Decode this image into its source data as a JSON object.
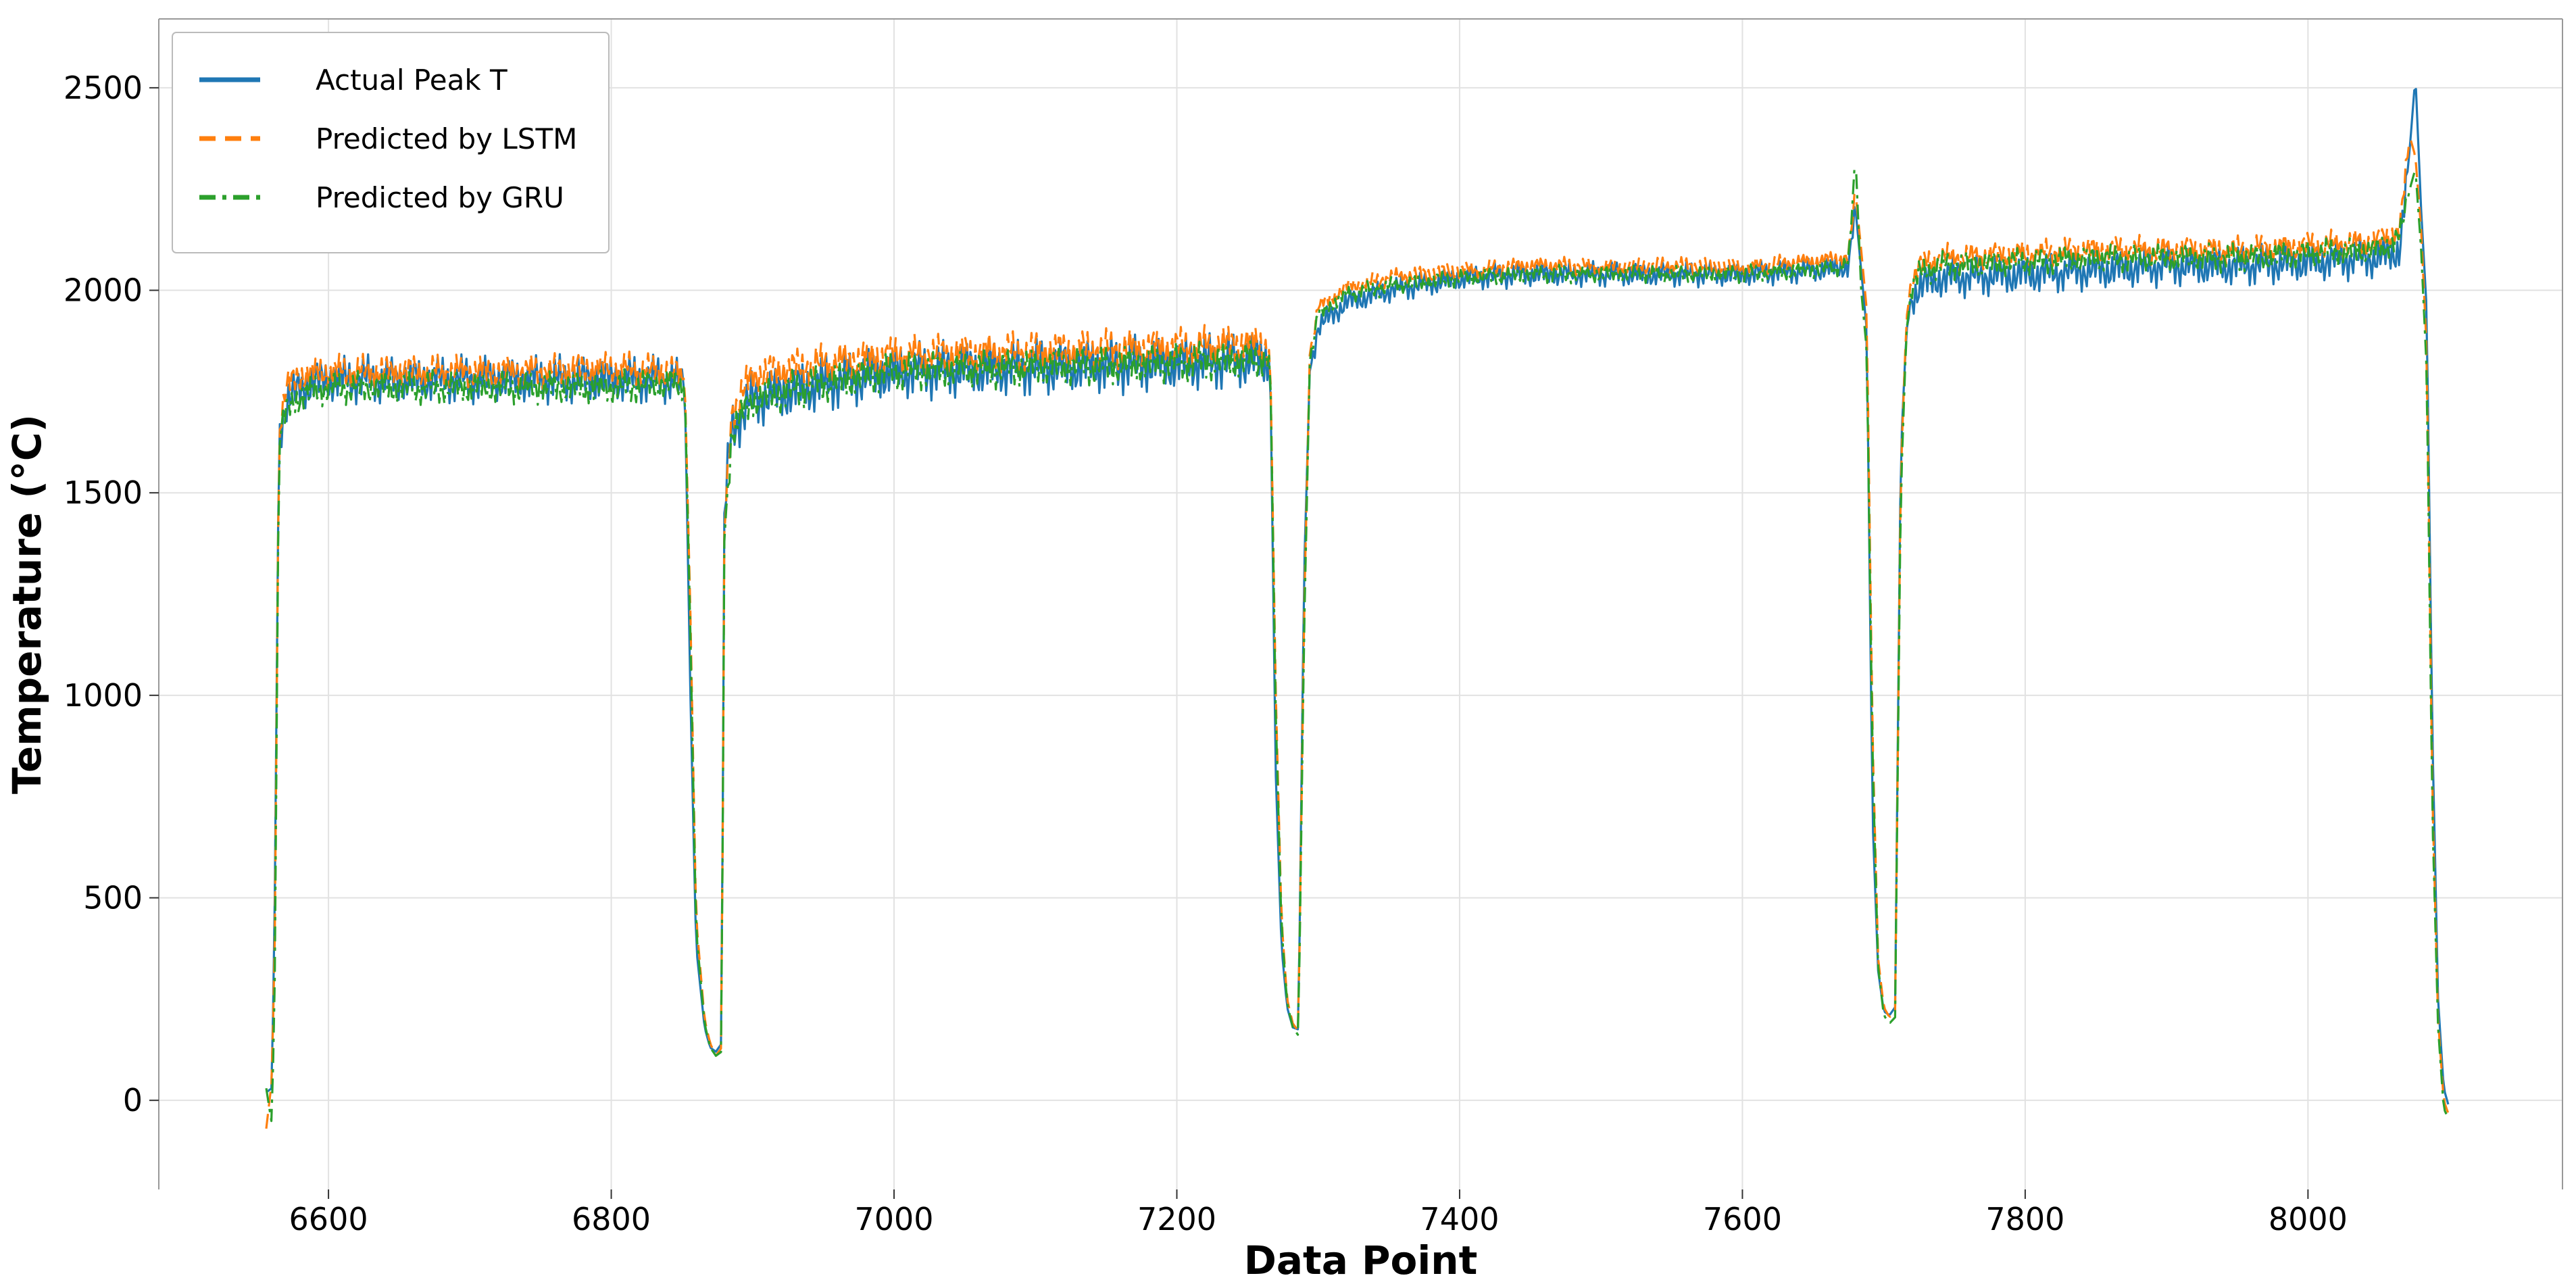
{
  "chart_data": {
    "type": "line",
    "xlabel": "Data Point",
    "ylabel": "Temperature (°C)",
    "xlim": [
      6480,
      8180
    ],
    "ylim": [
      -220,
      2670
    ],
    "x_ticks": [
      6600,
      6800,
      7000,
      7200,
      7400,
      7600,
      7800,
      8000
    ],
    "y_ticks": [
      0,
      500,
      1000,
      1500,
      2000,
      2500
    ],
    "grid": true,
    "legend_position": "top-left",
    "series": [
      {
        "name": "Actual Peak T",
        "color": "#1f77b4",
        "dash": "solid"
      },
      {
        "name": "Predicted by LSTM",
        "color": "#ff7f0e",
        "dash": "dashed"
      },
      {
        "name": "Predicted by GRU",
        "color": "#2ca02c",
        "dash": "dashdot"
      }
    ],
    "x": [
      6556,
      6560,
      6562,
      6565,
      6570,
      6580,
      6600,
      6650,
      6700,
      6750,
      6800,
      6845,
      6852,
      6856,
      6860,
      6866,
      6870,
      6874,
      6878,
      6880,
      6885,
      6900,
      6950,
      7000,
      7100,
      7200,
      7260,
      7266,
      7270,
      7274,
      7278,
      7282,
      7286,
      7290,
      7294,
      7300,
      7320,
      7350,
      7400,
      7450,
      7500,
      7550,
      7600,
      7650,
      7675,
      7680,
      7684,
      7688,
      7692,
      7696,
      7700,
      7704,
      7708,
      7712,
      7716,
      7720,
      7725,
      7740,
      7800,
      7850,
      7900,
      7950,
      8000,
      8050,
      8065,
      8072,
      8076,
      8080,
      8084,
      8088,
      8092,
      8096,
      8100
    ],
    "actual": [
      20,
      30,
      500,
      1650,
      1720,
      1760,
      1780,
      1780,
      1780,
      1780,
      1780,
      1780,
      1760,
      1000,
      380,
      180,
      130,
      120,
      140,
      1450,
      1660,
      1730,
      1770,
      1800,
      1810,
      1820,
      1830,
      1830,
      800,
      380,
      230,
      180,
      175,
      1300,
      1800,
      1910,
      1970,
      2000,
      2030,
      2040,
      2040,
      2040,
      2040,
      2050,
      2060,
      2200,
      2050,
      1900,
      700,
      320,
      220,
      210,
      230,
      1600,
      1900,
      1980,
      2010,
      2030,
      2040,
      2050,
      2060,
      2060,
      2070,
      2080,
      2100,
      2350,
      2530,
      2200,
      1950,
      900,
      250,
      30,
      -20
    ],
    "lstm": [
      -70,
      50,
      400,
      1660,
      1760,
      1790,
      1800,
      1800,
      1800,
      1800,
      1810,
      1800,
      1780,
      1200,
      450,
      200,
      140,
      110,
      130,
      1400,
      1700,
      1790,
      1820,
      1840,
      1850,
      1860,
      1870,
      1850,
      1000,
      450,
      250,
      190,
      170,
      1200,
      1840,
      1960,
      2010,
      2030,
      2050,
      2060,
      2060,
      2060,
      2060,
      2070,
      2080,
      2240,
      2100,
      1950,
      900,
      350,
      230,
      205,
      220,
      1550,
      1930,
      2030,
      2060,
      2080,
      2090,
      2100,
      2100,
      2100,
      2110,
      2120,
      2150,
      2380,
      2330,
      2150,
      1850,
      750,
      200,
      0,
      -40
    ],
    "gru": [
      30,
      -60,
      300,
      1640,
      1700,
      1740,
      1760,
      1760,
      1760,
      1760,
      1760,
      1770,
      1760,
      1150,
      420,
      190,
      130,
      110,
      120,
      1380,
      1650,
      1730,
      1770,
      1800,
      1810,
      1820,
      1830,
      1840,
      950,
      430,
      240,
      180,
      160,
      1150,
      1820,
      1940,
      1990,
      2010,
      2030,
      2040,
      2040,
      2040,
      2040,
      2050,
      2060,
      2330,
      2000,
      1850,
      850,
      330,
      210,
      190,
      205,
      1500,
      1900,
      2010,
      2040,
      2060,
      2070,
      2080,
      2080,
      2080,
      2090,
      2100,
      2130,
      2250,
      2300,
      2100,
      1800,
      700,
      180,
      -20,
      -50
    ]
  }
}
